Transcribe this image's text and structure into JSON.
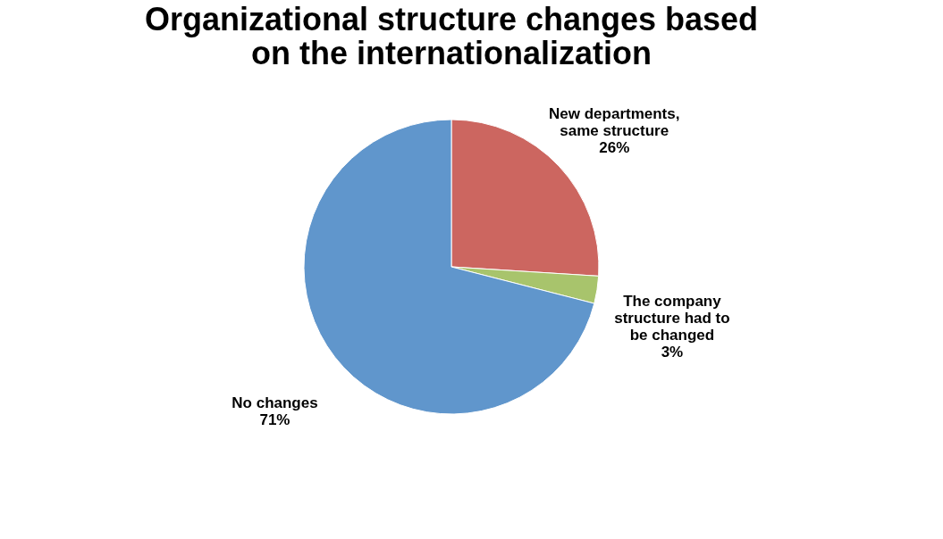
{
  "chart_data": {
    "type": "pie",
    "title": "Organizational structure changes based on the internationalization",
    "categories": [
      "New departments, same structure",
      "The company structure had to be changed",
      "No changes"
    ],
    "values": [
      26,
      3,
      71
    ],
    "colors": [
      "#cc6660",
      "#a8c46c",
      "#6096cc"
    ],
    "value_labels": [
      "26%",
      "3%",
      "71%"
    ],
    "legend": false
  }
}
